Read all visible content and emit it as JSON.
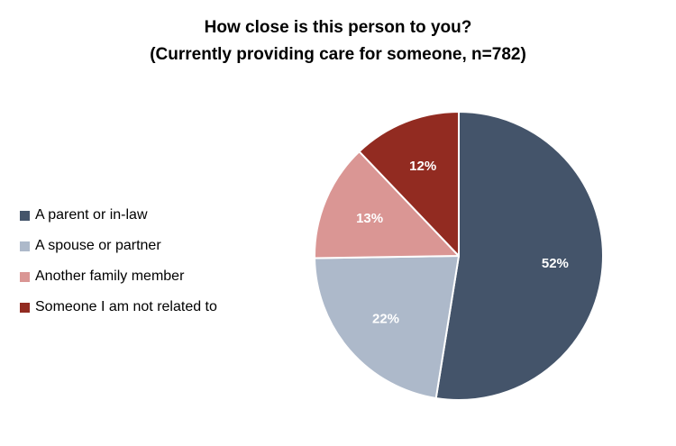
{
  "chart_data": {
    "type": "pie",
    "title": "How close is this person to you?",
    "subtitle": "(Currently providing care for someone, n=782)",
    "categories": [
      "A parent or in-law",
      "A spouse or partner",
      "Another family member",
      "Someone I am not related to"
    ],
    "values": [
      52,
      22,
      13,
      12
    ],
    "data_labels": [
      "52%",
      "22%",
      "13%",
      "12%"
    ],
    "colors": [
      "#44546A",
      "#ADB9CA",
      "#DA9694",
      "#922B21"
    ],
    "legend_position": "left"
  }
}
